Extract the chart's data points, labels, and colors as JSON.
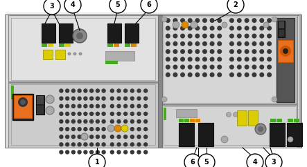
{
  "fig_width": 4.43,
  "fig_height": 2.42,
  "dpi": 100,
  "bg_color": "#ffffff",
  "chassis_bg": "#d4d4d4",
  "chassis_light": "#e8e8e8",
  "chassis_mid": "#c0c0c0",
  "chassis_dark": "#999999",
  "chassis_edge": "#555555",
  "panel_bg": "#cecece",
  "vent_dark": "#404040",
  "vent_bg": "#585858",
  "black": "#111111",
  "orange_iec": "#e87020",
  "green_led": "#44aa22",
  "yellow_led": "#ddcc00",
  "orange_led": "#dd8800",
  "dark_panel": "#606060",
  "screw_color": "#aaaaaa",
  "border_gray": "#888888"
}
